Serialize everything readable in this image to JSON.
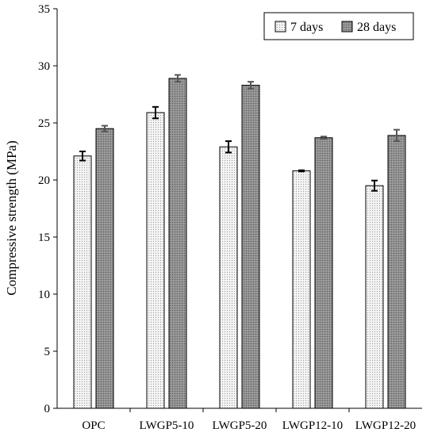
{
  "chart_data": {
    "type": "bar",
    "title": "",
    "xlabel": "",
    "ylabel": "Compressive strength (MPa)",
    "ylim": [
      0,
      35
    ],
    "yticks": [
      0,
      5,
      10,
      15,
      20,
      25,
      30,
      35
    ],
    "grid": false,
    "legend_position": "top-right",
    "categories": [
      "OPC",
      "LWGP5-10",
      "LWGP5-20",
      "LWGP12-10",
      "LWGP12-20"
    ],
    "series": [
      {
        "name": "7 days",
        "values": [
          22.1,
          25.9,
          22.9,
          20.8,
          19.5
        ],
        "errors": [
          0.4,
          0.5,
          0.5,
          0.05,
          0.45
        ],
        "color": "#f2f2f2",
        "pattern": "light-dots"
      },
      {
        "name": "28 days",
        "values": [
          24.5,
          28.9,
          28.3,
          23.7,
          23.9
        ],
        "errors": [
          0.25,
          0.3,
          0.3,
          0.1,
          0.5
        ],
        "color": "#8c8c8c",
        "pattern": "dark-dots"
      }
    ]
  }
}
